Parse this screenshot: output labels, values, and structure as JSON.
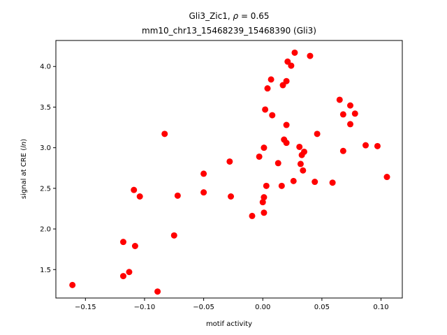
{
  "chart_data": {
    "type": "scatter",
    "title_line1_prefix": "Gli3_Zic1, ",
    "title_line1_rho": "ρ",
    "title_line1_suffix": " = 0.65",
    "title_line2": "mm10_chr13_15468239_15468390 (Gli3)",
    "xlabel": "motif activity",
    "ylabel_prefix": "signal at CRE (",
    "ylabel_ln": "ln",
    "ylabel_suffix": ")",
    "xlim": [
      -0.175,
      0.118
    ],
    "ylim": [
      1.15,
      4.32
    ],
    "xticks": [
      -0.15,
      -0.1,
      -0.05,
      0.0,
      0.05,
      0.1
    ],
    "xtick_labels": [
      "−0.15",
      "−0.10",
      "−0.05",
      "0.00",
      "0.05",
      "0.10"
    ],
    "yticks": [
      1.5,
      2.0,
      2.5,
      3.0,
      3.5,
      4.0
    ],
    "ytick_labels": [
      "1.5",
      "2.0",
      "2.5",
      "3.0",
      "3.5",
      "4.0"
    ],
    "grid": false,
    "point_color": "#ff0000",
    "points": [
      {
        "x": -0.161,
        "y": 1.31
      },
      {
        "x": -0.118,
        "y": 1.84
      },
      {
        "x": -0.118,
        "y": 1.42
      },
      {
        "x": -0.113,
        "y": 1.47
      },
      {
        "x": -0.109,
        "y": 2.48
      },
      {
        "x": -0.108,
        "y": 1.79
      },
      {
        "x": -0.104,
        "y": 2.4
      },
      {
        "x": -0.089,
        "y": 1.23
      },
      {
        "x": -0.083,
        "y": 3.17
      },
      {
        "x": -0.075,
        "y": 1.92
      },
      {
        "x": -0.072,
        "y": 2.41
      },
      {
        "x": -0.05,
        "y": 2.68
      },
      {
        "x": -0.05,
        "y": 2.45
      },
      {
        "x": -0.028,
        "y": 2.83
      },
      {
        "x": -0.027,
        "y": 2.4
      },
      {
        "x": -0.009,
        "y": 2.16
      },
      {
        "x": -0.003,
        "y": 2.89
      },
      {
        "x": 0.0,
        "y": 2.33
      },
      {
        "x": 0.001,
        "y": 2.39
      },
      {
        "x": 0.001,
        "y": 2.2
      },
      {
        "x": 0.001,
        "y": 3.0
      },
      {
        "x": 0.002,
        "y": 3.47
      },
      {
        "x": 0.003,
        "y": 2.53
      },
      {
        "x": 0.004,
        "y": 3.73
      },
      {
        "x": 0.007,
        "y": 3.84
      },
      {
        "x": 0.008,
        "y": 3.4
      },
      {
        "x": 0.013,
        "y": 2.81
      },
      {
        "x": 0.016,
        "y": 2.53
      },
      {
        "x": 0.017,
        "y": 3.77
      },
      {
        "x": 0.018,
        "y": 3.1
      },
      {
        "x": 0.02,
        "y": 3.82
      },
      {
        "x": 0.02,
        "y": 3.28
      },
      {
        "x": 0.02,
        "y": 3.06
      },
      {
        "x": 0.021,
        "y": 4.06
      },
      {
        "x": 0.024,
        "y": 4.01
      },
      {
        "x": 0.026,
        "y": 2.59
      },
      {
        "x": 0.027,
        "y": 4.17
      },
      {
        "x": 0.031,
        "y": 3.01
      },
      {
        "x": 0.032,
        "y": 2.8
      },
      {
        "x": 0.033,
        "y": 2.91
      },
      {
        "x": 0.034,
        "y": 2.72
      },
      {
        "x": 0.035,
        "y": 2.95
      },
      {
        "x": 0.04,
        "y": 4.13
      },
      {
        "x": 0.044,
        "y": 2.58
      },
      {
        "x": 0.046,
        "y": 3.17
      },
      {
        "x": 0.059,
        "y": 2.57
      },
      {
        "x": 0.065,
        "y": 3.59
      },
      {
        "x": 0.068,
        "y": 3.41
      },
      {
        "x": 0.068,
        "y": 2.96
      },
      {
        "x": 0.074,
        "y": 3.52
      },
      {
        "x": 0.074,
        "y": 3.29
      },
      {
        "x": 0.078,
        "y": 3.42
      },
      {
        "x": 0.087,
        "y": 3.03
      },
      {
        "x": 0.097,
        "y": 3.02
      },
      {
        "x": 0.105,
        "y": 2.64
      }
    ]
  }
}
